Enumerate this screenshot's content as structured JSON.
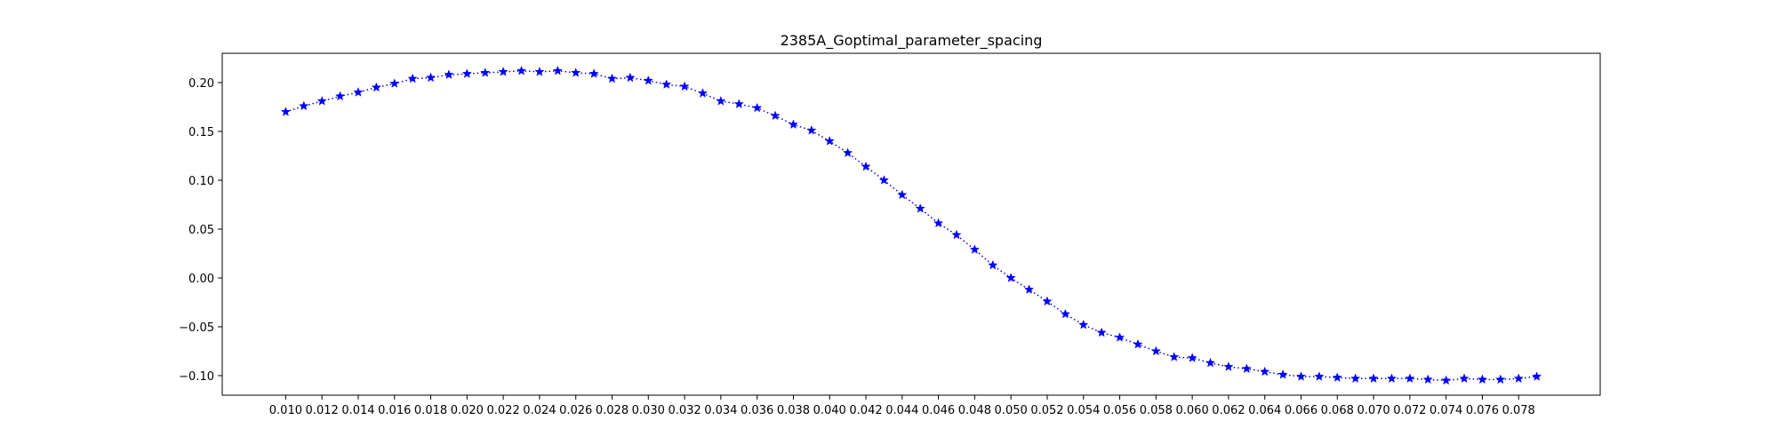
{
  "chart_data": {
    "type": "line",
    "title": "2385A_Goptimal_parameter_spacing",
    "xlabel": "",
    "ylabel": "",
    "xlim": [
      0.0065,
      0.0825
    ],
    "ylim": [
      -0.12,
      0.23
    ],
    "grid": false,
    "x_ticks": [
      0.01,
      0.012,
      0.014,
      0.016,
      0.018,
      0.02,
      0.022,
      0.024,
      0.026,
      0.028,
      0.03,
      0.032,
      0.034,
      0.036,
      0.038,
      0.04,
      0.042,
      0.044,
      0.046,
      0.048,
      0.05,
      0.052,
      0.054,
      0.056,
      0.058,
      0.06,
      0.062,
      0.064,
      0.066,
      0.068,
      0.07,
      0.072,
      0.074,
      0.076,
      0.078
    ],
    "x_tick_labels": [
      "0.010",
      "0.012",
      "0.014",
      "0.016",
      "0.018",
      "0.020",
      "0.022",
      "0.024",
      "0.026",
      "0.028",
      "0.030",
      "0.032",
      "0.034",
      "0.036",
      "0.038",
      "0.040",
      "0.042",
      "0.044",
      "0.046",
      "0.048",
      "0.050",
      "0.052",
      "0.054",
      "0.056",
      "0.058",
      "0.060",
      "0.062",
      "0.064",
      "0.066",
      "0.068",
      "0.070",
      "0.072",
      "0.074",
      "0.076",
      "0.078"
    ],
    "y_ticks": [
      -0.1,
      -0.05,
      0.0,
      0.05,
      0.1,
      0.15,
      0.2
    ],
    "y_tick_labels": [
      "−0.10",
      "−0.05",
      "0.00",
      "0.05",
      "0.10",
      "0.15",
      "0.20"
    ],
    "series": [
      {
        "color": "#0000ff",
        "line_style": "dotted",
        "marker": "star",
        "x": [
          0.01,
          0.011,
          0.012,
          0.013,
          0.014,
          0.015,
          0.016,
          0.017,
          0.018,
          0.019,
          0.02,
          0.021,
          0.022,
          0.023,
          0.024,
          0.025,
          0.026,
          0.027,
          0.028,
          0.029,
          0.03,
          0.031,
          0.032,
          0.033,
          0.034,
          0.035,
          0.036,
          0.037,
          0.038,
          0.039,
          0.04,
          0.041,
          0.042,
          0.043,
          0.044,
          0.045,
          0.046,
          0.047,
          0.048,
          0.049,
          0.05,
          0.051,
          0.052,
          0.053,
          0.054,
          0.055,
          0.056,
          0.057,
          0.058,
          0.059,
          0.06,
          0.061,
          0.062,
          0.063,
          0.064,
          0.065,
          0.066,
          0.067,
          0.068,
          0.069,
          0.07,
          0.071,
          0.072,
          0.073,
          0.074,
          0.075,
          0.076,
          0.077,
          0.078,
          0.079
        ],
        "y": [
          0.17,
          0.176,
          0.181,
          0.186,
          0.19,
          0.195,
          0.199,
          0.204,
          0.205,
          0.208,
          0.209,
          0.21,
          0.211,
          0.212,
          0.211,
          0.212,
          0.21,
          0.209,
          0.204,
          0.205,
          0.202,
          0.198,
          0.196,
          0.189,
          0.181,
          0.178,
          0.174,
          0.166,
          0.157,
          0.151,
          0.14,
          0.128,
          0.114,
          0.1,
          0.085,
          0.071,
          0.056,
          0.044,
          0.029,
          0.013,
          0.0,
          -0.012,
          -0.024,
          -0.037,
          -0.048,
          -0.056,
          -0.061,
          -0.068,
          -0.075,
          -0.081,
          -0.082,
          -0.087,
          -0.091,
          -0.093,
          -0.096,
          -0.099,
          -0.101,
          -0.101,
          -0.102,
          -0.103,
          -0.103,
          -0.103,
          -0.103,
          -0.104,
          -0.105,
          -0.103,
          -0.104,
          -0.104,
          -0.103,
          -0.101
        ]
      }
    ]
  }
}
